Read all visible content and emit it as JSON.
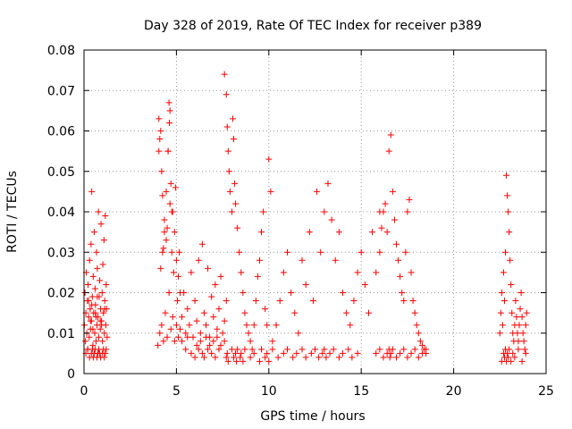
{
  "chart_data": {
    "type": "scatter",
    "title": "Day 328 of 2019, Rate Of TEC Index for receiver p389",
    "xlabel": "GPS time / hours",
    "ylabel": "ROTI / TECUs",
    "xlim": [
      0,
      25
    ],
    "ylim": [
      0,
      0.08
    ],
    "x_ticks": [
      0,
      5,
      10,
      15,
      20,
      25
    ],
    "x_tick_labels": [
      "0",
      "5",
      "10",
      "15",
      "20",
      "25"
    ],
    "y_ticks": [
      0,
      0.01,
      0.02,
      0.03,
      0.04,
      0.05,
      0.06,
      0.07,
      0.08
    ],
    "y_tick_labels": [
      "0",
      "0.01",
      "0.02",
      "0.03",
      "0.04",
      "0.05",
      "0.06",
      "0.07",
      "0.08"
    ],
    "grid": true,
    "marker": "plus",
    "color": "#ff0000",
    "series": [
      {
        "x": [
          0.02,
          0.05,
          0.08,
          0.1,
          0.12,
          0.15,
          0.18,
          0.2,
          0.22,
          0.25,
          0.28,
          0.3,
          0.33,
          0.35,
          0.38,
          0.4,
          0.42,
          0.45,
          0.48,
          0.5,
          0.52,
          0.55,
          0.58,
          0.6,
          0.62,
          0.65,
          0.68,
          0.7,
          0.72,
          0.75,
          0.78,
          0.8,
          0.82,
          0.85,
          0.88,
          0.9,
          0.92,
          0.95,
          0.98,
          1.0,
          1.02,
          1.05,
          1.08,
          1.1,
          1.12,
          1.15,
          1.18,
          1.2,
          1.22,
          1.25,
          0.1,
          0.2,
          0.3,
          0.4,
          0.45,
          0.5,
          0.55,
          0.6,
          0.7,
          0.75,
          0.8,
          0.85,
          0.9,
          1.0,
          1.05,
          1.1,
          1.15,
          1.2,
          0.35,
          0.42,
          0.48,
          0.65,
          0.72,
          0.95,
          1.12,
          0.25,
          0.62,
          0.88,
          4.0,
          4.05,
          4.1,
          4.15,
          4.2,
          4.25,
          4.3,
          4.35,
          4.4,
          4.45,
          4.5,
          4.55,
          4.6,
          4.65,
          4.7,
          4.75,
          4.8,
          4.85,
          4.9,
          4.95,
          5.0,
          5.05,
          5.1,
          5.15,
          5.2,
          5.3,
          5.4,
          5.5,
          5.6,
          5.7,
          5.8,
          5.9,
          6.0,
          6.1,
          6.2,
          6.3,
          6.4,
          6.5,
          6.6,
          6.7,
          6.8,
          6.9,
          7.0,
          7.1,
          7.2,
          7.3,
          7.4,
          7.5,
          7.6,
          7.7,
          4.05,
          4.1,
          4.2,
          4.25,
          4.35,
          4.45,
          4.55,
          4.6,
          4.62,
          4.7,
          4.8,
          4.9,
          5.0,
          5.1,
          5.2,
          4.15,
          4.3,
          4.5,
          4.65,
          4.75,
          5.5,
          5.8,
          6.0,
          6.2,
          6.4,
          6.5,
          6.7,
          6.9,
          7.1,
          7.3,
          5.3,
          5.6,
          6.1,
          6.3,
          6.6,
          6.8,
          7.0,
          7.2,
          7.4,
          7.6,
          7.6,
          7.7,
          7.75,
          7.8,
          7.85,
          7.9,
          8.0,
          8.05,
          8.1,
          8.15,
          8.2,
          8.3,
          8.4,
          8.5,
          8.6,
          8.7,
          8.8,
          8.9,
          9.0,
          9.1,
          9.2,
          9.3,
          9.4,
          9.5,
          9.6,
          9.7,
          9.8,
          9.9,
          10.0,
          10.1,
          7.7,
          7.75,
          7.8,
          8.0,
          8.1,
          8.2,
          8.25,
          8.3,
          8.45,
          8.5,
          8.6,
          8.7,
          9.0,
          9.2,
          9.5,
          9.6,
          9.8,
          9.9,
          10.0,
          10.2,
          10.2,
          10.4,
          10.6,
          10.8,
          11.0,
          11.2,
          11.4,
          11.6,
          11.8,
          12.0,
          12.2,
          12.4,
          12.6,
          12.8,
          13.0,
          13.2,
          13.4,
          13.6,
          13.8,
          14.0,
          14.2,
          14.4,
          14.6,
          14.8,
          15.0,
          15.2,
          15.4,
          15.6,
          15.8,
          16.0,
          10.5,
          10.8,
          11.0,
          11.3,
          11.5,
          11.8,
          12.0,
          12.3,
          12.5,
          12.7,
          12.9,
          13.0,
          13.1,
          13.3,
          13.5,
          13.8,
          14.0,
          14.3,
          14.5,
          14.8,
          16.0,
          16.1,
          16.2,
          16.3,
          16.4,
          16.5,
          16.6,
          16.7,
          16.8,
          16.9,
          17.0,
          17.1,
          17.2,
          17.3,
          17.4,
          17.5,
          17.6,
          17.7,
          17.8,
          17.9,
          18.0,
          18.1,
          18.2,
          18.3,
          18.4,
          18.5,
          15.8,
          16.0,
          16.2,
          16.4,
          16.5,
          16.55,
          16.6,
          16.7,
          16.9,
          17.1,
          17.3,
          17.5,
          17.7,
          17.9,
          18.1,
          18.3,
          18.5,
          22.5,
          22.55,
          22.6,
          22.65,
          22.7,
          22.75,
          22.8,
          22.85,
          22.9,
          22.95,
          23.0,
          23.05,
          23.1,
          23.15,
          23.2,
          23.25,
          23.3,
          23.35,
          23.4,
          23.45,
          23.5,
          23.55,
          23.6,
          23.65,
          23.7,
          23.75,
          23.8,
          23.85,
          23.9,
          23.95,
          22.6,
          22.7,
          22.75,
          22.8,
          22.85,
          22.9,
          22.95,
          23.0,
          23.1,
          23.2,
          23.3,
          23.5,
          23.7,
          23.9
        ],
        "y": [
          0.012,
          0.02,
          0.008,
          0.015,
          0.025,
          0.01,
          0.018,
          0.006,
          0.022,
          0.014,
          0.009,
          0.028,
          0.016,
          0.011,
          0.032,
          0.013,
          0.045,
          0.019,
          0.007,
          0.024,
          0.015,
          0.035,
          0.01,
          0.021,
          0.017,
          0.008,
          0.03,
          0.012,
          0.026,
          0.014,
          0.04,
          0.009,
          0.019,
          0.023,
          0.011,
          0.016,
          0.037,
          0.013,
          0.02,
          0.008,
          0.027,
          0.015,
          0.033,
          0.01,
          0.018,
          0.039,
          0.012,
          0.022,
          0.016,
          0.009,
          0.005,
          0.006,
          0.004,
          0.005,
          0.006,
          0.004,
          0.005,
          0.006,
          0.004,
          0.005,
          0.006,
          0.005,
          0.004,
          0.005,
          0.006,
          0.004,
          0.005,
          0.006,
          0.013,
          0.017,
          0.011,
          0.014,
          0.019,
          0.012,
          0.016,
          0.018,
          0.015,
          0.013,
          0.007,
          0.055,
          0.01,
          0.06,
          0.012,
          0.03,
          0.008,
          0.035,
          0.015,
          0.045,
          0.009,
          0.055,
          0.02,
          0.065,
          0.011,
          0.04,
          0.014,
          0.025,
          0.008,
          0.046,
          0.012,
          0.018,
          0.009,
          0.03,
          0.011,
          0.014,
          0.02,
          0.01,
          0.016,
          0.012,
          0.025,
          0.009,
          0.018,
          0.013,
          0.028,
          0.01,
          0.032,
          0.015,
          0.012,
          0.026,
          0.009,
          0.019,
          0.014,
          0.022,
          0.011,
          0.016,
          0.024,
          0.01,
          0.013,
          0.018,
          0.063,
          0.058,
          0.05,
          0.044,
          0.038,
          0.033,
          0.055,
          0.067,
          0.062,
          0.047,
          0.04,
          0.035,
          0.028,
          0.024,
          0.02,
          0.026,
          0.031,
          0.036,
          0.042,
          0.03,
          0.006,
          0.005,
          0.004,
          0.006,
          0.005,
          0.004,
          0.006,
          0.005,
          0.004,
          0.006,
          0.008,
          0.009,
          0.007,
          0.008,
          0.009,
          0.007,
          0.008,
          0.009,
          0.007,
          0.008,
          0.074,
          0.069,
          0.061,
          0.055,
          0.05,
          0.045,
          0.04,
          0.063,
          0.058,
          0.047,
          0.042,
          0.036,
          0.03,
          0.025,
          0.02,
          0.015,
          0.012,
          0.01,
          0.008,
          0.006,
          0.012,
          0.018,
          0.024,
          0.028,
          0.035,
          0.04,
          0.016,
          0.012,
          0.053,
          0.045,
          0.004,
          0.005,
          0.003,
          0.006,
          0.004,
          0.005,
          0.003,
          0.006,
          0.004,
          0.005,
          0.003,
          0.006,
          0.004,
          0.005,
          0.003,
          0.006,
          0.004,
          0.005,
          0.003,
          0.006,
          0.008,
          0.012,
          0.018,
          0.025,
          0.03,
          0.02,
          0.015,
          0.01,
          0.028,
          0.022,
          0.035,
          0.018,
          0.045,
          0.03,
          0.04,
          0.047,
          0.038,
          0.028,
          0.035,
          0.02,
          0.015,
          0.012,
          0.018,
          0.025,
          0.03,
          0.022,
          0.015,
          0.035,
          0.025,
          0.04,
          0.004,
          0.005,
          0.006,
          0.004,
          0.005,
          0.006,
          0.004,
          0.005,
          0.006,
          0.004,
          0.005,
          0.006,
          0.004,
          0.005,
          0.006,
          0.004,
          0.005,
          0.006,
          0.004,
          0.005,
          0.03,
          0.036,
          0.04,
          0.042,
          0.035,
          0.055,
          0.059,
          0.045,
          0.038,
          0.032,
          0.028,
          0.024,
          0.02,
          0.018,
          0.03,
          0.04,
          0.043,
          0.025,
          0.018,
          0.015,
          0.012,
          0.01,
          0.008,
          0.007,
          0.006,
          0.005,
          0.005,
          0.006,
          0.004,
          0.005,
          0.006,
          0.004,
          0.005,
          0.006,
          0.004,
          0.005,
          0.006,
          0.004,
          0.005,
          0.006,
          0.004,
          0.005,
          0.006,
          0.01,
          0.015,
          0.02,
          0.012,
          0.025,
          0.018,
          0.03,
          0.049,
          0.044,
          0.04,
          0.035,
          0.028,
          0.022,
          0.015,
          0.01,
          0.008,
          0.012,
          0.018,
          0.014,
          0.01,
          0.008,
          0.012,
          0.016,
          0.02,
          0.014,
          0.01,
          0.008,
          0.006,
          0.012,
          0.015,
          0.003,
          0.005,
          0.004,
          0.006,
          0.003,
          0.005,
          0.004,
          0.006,
          0.003,
          0.005,
          0.004,
          0.006,
          0.003,
          0.005
        ]
      }
    ]
  }
}
